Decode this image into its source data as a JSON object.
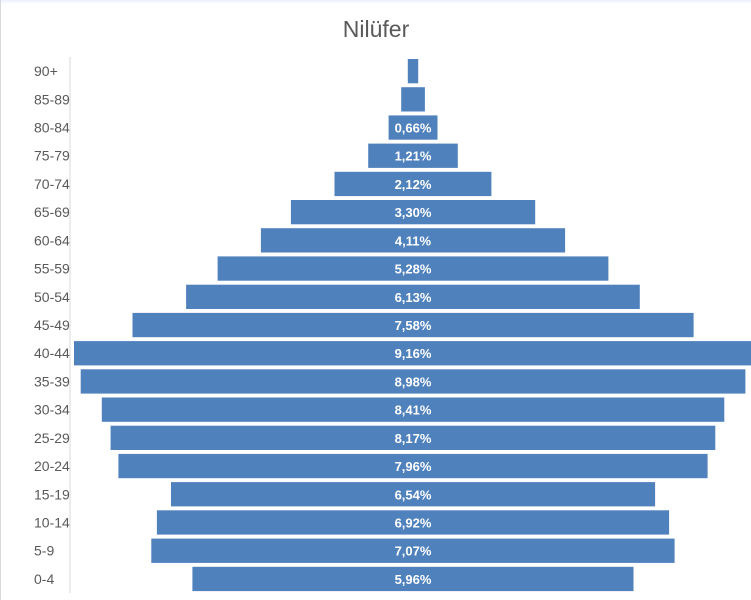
{
  "chart_data": {
    "type": "bar",
    "orientation": "horizontal-centered",
    "title": "Nilüfer",
    "categories": [
      "90+",
      "85-89",
      "80-84",
      "75-79",
      "70-74",
      "65-69",
      "60-64",
      "55-59",
      "50-54",
      "45-49",
      "40-44",
      "35-39",
      "30-34",
      "25-29",
      "20-24",
      "15-19",
      "10-14",
      "5-9",
      "0-4"
    ],
    "values": [
      0.14,
      0.32,
      0.66,
      1.21,
      2.12,
      3.3,
      4.11,
      5.28,
      6.13,
      7.58,
      9.16,
      8.98,
      8.41,
      8.17,
      7.96,
      6.54,
      6.92,
      7.07,
      5.96
    ],
    "data_labels": [
      "",
      "",
      "0,66%",
      "1,21%",
      "2,12%",
      "3,30%",
      "4,11%",
      "5,28%",
      "6,13%",
      "7,58%",
      "9,16%",
      "8,98%",
      "8,41%",
      "8,17%",
      "7,96%",
      "6,54%",
      "6,92%",
      "7,07%",
      "5,96%"
    ],
    "bar_color": "#4f81bd",
    "axis_line_color": "#d9d9d9",
    "grid": false,
    "legend": "none"
  }
}
